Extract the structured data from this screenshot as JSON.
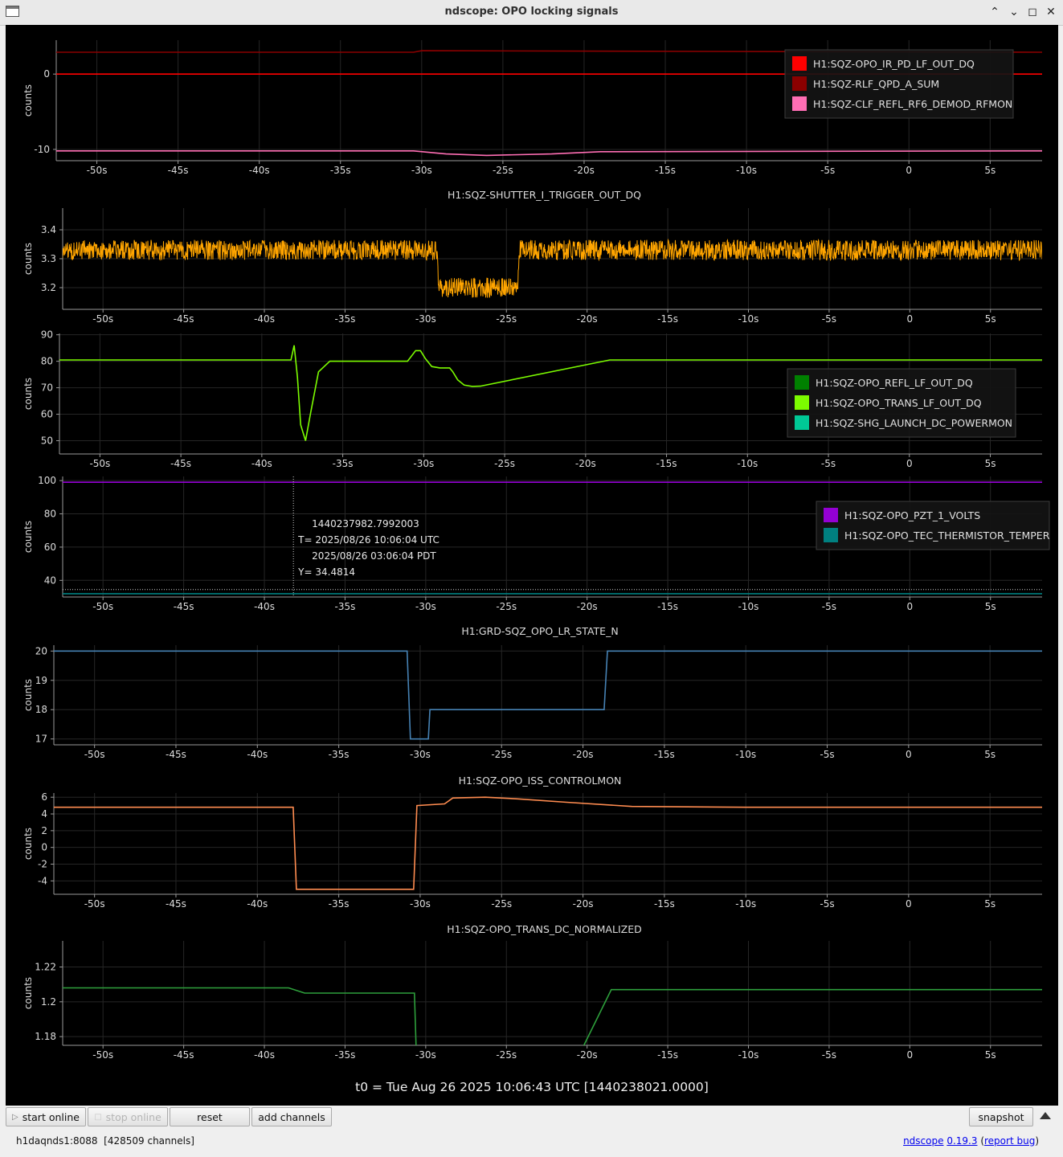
{
  "window": {
    "title": "ndscope: OPO locking signals"
  },
  "plots": [
    {
      "title": "",
      "ylabel": "counts",
      "yticks": [
        {
          "v": 0,
          "label": "0"
        },
        {
          "v": -10,
          "label": "-10"
        }
      ],
      "ylim": [
        -11.5,
        4.5
      ],
      "legend": [
        {
          "name": "H1:SQZ-OPO_IR_PD_LF_OUT_DQ",
          "color": "#ff0000"
        },
        {
          "name": "H1:SQZ-RLF_QPD_A_SUM",
          "color": "#8b0000"
        },
        {
          "name": "H1:SQZ-CLF_REFL_RF6_DEMOD_RFMON",
          "color": "#ff6eb4"
        }
      ]
    },
    {
      "title": "H1:SQZ-SHUTTER_I_TRIGGER_OUT_DQ",
      "ylabel": "counts",
      "yticks": [
        {
          "v": 3.4,
          "label": "3.4"
        },
        {
          "v": 3.3,
          "label": "3.3"
        },
        {
          "v": 3.2,
          "label": "3.2"
        }
      ],
      "ylim": [
        3.125,
        3.475
      ],
      "legend": []
    },
    {
      "title": "",
      "ylabel": "counts",
      "yticks": [
        {
          "v": 90,
          "label": "90"
        },
        {
          "v": 80,
          "label": "80"
        },
        {
          "v": 70,
          "label": "70"
        },
        {
          "v": 60,
          "label": "60"
        },
        {
          "v": 50,
          "label": "50"
        }
      ],
      "ylim": [
        45,
        90.5
      ],
      "legend": [
        {
          "name": "H1:SQZ-OPO_REFL_LF_OUT_DQ",
          "color": "#008000"
        },
        {
          "name": "H1:SQZ-OPO_TRANS_LF_OUT_DQ",
          "color": "#7cfc00"
        },
        {
          "name": "H1:SQZ-SHG_LAUNCH_DC_POWERMON",
          "color": "#00c896"
        }
      ]
    },
    {
      "title": "",
      "ylabel": "counts",
      "yticks": [
        {
          "v": 100,
          "label": "100"
        },
        {
          "v": 80,
          "label": "80"
        },
        {
          "v": 60,
          "label": "60"
        },
        {
          "v": 40,
          "label": "40"
        }
      ],
      "ylim": [
        30,
        102.5
      ],
      "legend": [
        {
          "name": "H1:SQZ-OPO_PZT_1_VOLTS",
          "color": "#9400d3"
        },
        {
          "name": "H1:SQZ-OPO_TEC_THERMISTOR_TEMPER",
          "color": "#008080"
        }
      ],
      "cursor": {
        "gps": "1440237982.7992003",
        "utc": "T= 2025/08/26 10:06:04 UTC",
        "pdt": "2025/08/26 03:06:04 PDT",
        "y": "Y= 34.4814",
        "t": -38.2,
        "yval": 34.4814
      }
    },
    {
      "title": "H1:GRD-SQZ_OPO_LR_STATE_N",
      "ylabel": "counts",
      "yticks": [
        {
          "v": 20,
          "label": "20"
        },
        {
          "v": 19,
          "label": "19"
        },
        {
          "v": 18,
          "label": "18"
        },
        {
          "v": 17,
          "label": "17"
        }
      ],
      "ylim": [
        16.8,
        20.2
      ],
      "legend": []
    },
    {
      "title": "H1:SQZ-OPO_ISS_CONTROLMON",
      "ylabel": "counts",
      "yticks": [
        {
          "v": 6,
          "label": "6"
        },
        {
          "v": 4,
          "label": "4"
        },
        {
          "v": 2,
          "label": "2"
        },
        {
          "v": 0,
          "label": "0"
        },
        {
          "v": -2,
          "label": "-2"
        },
        {
          "v": -4,
          "label": "-4"
        }
      ],
      "ylim": [
        -5.6,
        6.5
      ],
      "legend": []
    },
    {
      "title": "H1:SQZ-OPO_TRANS_DC_NORMALIZED",
      "ylabel": "counts",
      "yticks": [
        {
          "v": 1.22,
          "label": "1.22"
        },
        {
          "v": 1.2,
          "label": "1.2"
        },
        {
          "v": 1.18,
          "label": "1.18"
        }
      ],
      "ylim": [
        1.175,
        1.235
      ],
      "legend": []
    }
  ],
  "xaxis": {
    "ticks": [
      {
        "v": -50,
        "label": "-50s"
      },
      {
        "v": -45,
        "label": "-45s"
      },
      {
        "v": -40,
        "label": "-40s"
      },
      {
        "v": -35,
        "label": "-35s"
      },
      {
        "v": -30,
        "label": "-30s"
      },
      {
        "v": -25,
        "label": "-25s"
      },
      {
        "v": -20,
        "label": "-20s"
      },
      {
        "v": -15,
        "label": "-15s"
      },
      {
        "v": -10,
        "label": "-10s"
      },
      {
        "v": -5,
        "label": "-5s"
      },
      {
        "v": 0,
        "label": "0"
      },
      {
        "v": 5,
        "label": "5s"
      }
    ],
    "xlim": [
      -52.5,
      8.2
    ]
  },
  "chart_data": [
    {
      "type": "line",
      "xlabel": "",
      "ylabel": "counts",
      "series": [
        {
          "name": "H1:SQZ-OPO_IR_PD_LF_OUT_DQ",
          "color": "#ff0000",
          "x": [
            -52.5,
            8.2
          ],
          "y": [
            0,
            0
          ]
        },
        {
          "name": "H1:SQZ-RLF_QPD_A_SUM",
          "color": "#8b0000",
          "x": [
            -52.5,
            -30.5,
            -30,
            8.2
          ],
          "y": [
            2.9,
            2.9,
            3.1,
            2.9
          ]
        },
        {
          "name": "H1:SQZ-CLF_REFL_RF6_DEMOD_RFMON",
          "color": "#ff6eb4",
          "x": [
            -52.5,
            -30.5,
            -28.5,
            -26,
            -22,
            -19,
            8.2
          ],
          "y": [
            -10.2,
            -10.2,
            -10.6,
            -10.8,
            -10.6,
            -10.3,
            -10.2
          ]
        }
      ]
    },
    {
      "type": "line",
      "title": "H1:SQZ-SHUTTER_I_TRIGGER_OUT_DQ",
      "ylabel": "counts",
      "series": [
        {
          "color": "#ffa500",
          "x": [
            -52.5,
            -29.3,
            -29.2,
            -24.3,
            -24.2,
            8.2
          ],
          "y": [
            3.33,
            3.33,
            3.2,
            3.2,
            3.33,
            3.33
          ],
          "noise": 0.035
        }
      ]
    },
    {
      "type": "line",
      "ylabel": "counts",
      "series": [
        {
          "name": "H1:SQZ-OPO_TRANS_LF_OUT_DQ",
          "color": "#7cfc00",
          "x": [
            -52.5,
            -38.2,
            -38.0,
            -37.8,
            -37.6,
            -37.3,
            -37.0,
            -36.5,
            -35.8,
            -35,
            -31,
            -30.5,
            -30.2,
            -29.9,
            -29.5,
            -29,
            -28.4,
            -28.2,
            -27.9,
            -27.5,
            -27,
            -26.5,
            -18.5,
            8.2
          ],
          "y": [
            80.5,
            80.5,
            86,
            74,
            56,
            50,
            60,
            76,
            80,
            80,
            80,
            84,
            84,
            81,
            78,
            77.5,
            77.5,
            76,
            73,
            71,
            70.5,
            70.6,
            80.5,
            80.5
          ]
        }
      ]
    },
    {
      "type": "line",
      "ylabel": "counts",
      "series": [
        {
          "name": "H1:SQZ-OPO_PZT_1_VOLTS",
          "color": "#9400d3",
          "x": [
            -52.5,
            8.2
          ],
          "y": [
            99,
            99
          ]
        },
        {
          "name": "H1:SQZ-OPO_TEC_THERMISTOR_TEMPER",
          "color": "#008080",
          "x": [
            -52.5,
            8.2
          ],
          "y": [
            32,
            32
          ]
        }
      ]
    },
    {
      "type": "line",
      "title": "H1:GRD-SQZ_OPO_LR_STATE_N",
      "ylabel": "counts",
      "series": [
        {
          "color": "#4682b4",
          "x": [
            -52.5,
            -30.8,
            -30.6,
            -29.5,
            -29.4,
            -18.7,
            -18.5,
            8.2
          ],
          "y": [
            20,
            20,
            17,
            17,
            18,
            18,
            20,
            20
          ]
        }
      ]
    },
    {
      "type": "line",
      "title": "H1:SQZ-OPO_ISS_CONTROLMON",
      "ylabel": "counts",
      "series": [
        {
          "color": "#ff8c50",
          "x": [
            -52.5,
            -37.8,
            -37.6,
            -30.4,
            -30.2,
            -28.5,
            -28,
            -26,
            -24,
            -21,
            -17,
            -10,
            -2,
            8.2
          ],
          "y": [
            4.8,
            4.8,
            -5,
            -5,
            5,
            5.2,
            5.9,
            6.0,
            5.8,
            5.4,
            4.9,
            4.8,
            4.8,
            4.8
          ]
        }
      ]
    },
    {
      "type": "line",
      "title": "H1:SQZ-OPO_TRANS_DC_NORMALIZED",
      "ylabel": "counts",
      "series": [
        {
          "color": "#2ea03c",
          "x": [
            -52.5,
            -38.5,
            -37.5,
            -30.7,
            -30.6
          ],
          "y": [
            1.208,
            1.208,
            1.205,
            1.205,
            1.175
          ]
        },
        {
          "color": "#2ea03c",
          "x": [
            -20.2,
            -18.5,
            8.2
          ],
          "y": [
            1.175,
            1.207,
            1.207
          ]
        }
      ]
    }
  ],
  "footer": {
    "t0": "t0 = Tue Aug 26 2025 10:06:43 UTC [1440238021.0000]"
  },
  "toolbar": {
    "start_online": "start online",
    "stop_online": "stop online",
    "reset": "reset",
    "add_channels": "add channels",
    "snapshot": "snapshot"
  },
  "status": {
    "server": "h1daqnds1:8088",
    "channels": "[428509 channels]",
    "app_link": "ndscope",
    "version": "0.19.3",
    "open_paren": " (",
    "report_bug": "report bug",
    "close_paren": ")"
  }
}
